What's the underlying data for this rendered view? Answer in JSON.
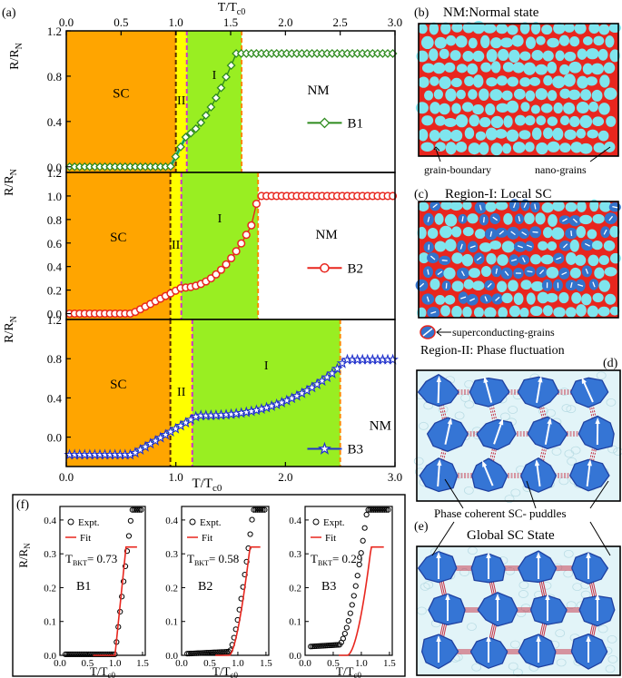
{
  "figure": {
    "panel_labels": {
      "a": "(a)",
      "b": "(b)",
      "c": "(c)",
      "d": "(d)",
      "e": "(e)",
      "f": "(f)"
    },
    "titles": {
      "b": "NM:Normal state",
      "c": "Region-I: Local SC",
      "d": "Region-II: Phase fluctuation",
      "e": "Global SC State"
    },
    "annotations": {
      "grain_boundary": "grain-boundary",
      "nano_grains": "nano-grains",
      "sc_grains": "superconducting-grains",
      "puddles": "Phase coherent SC- puddles"
    },
    "colors": {
      "sc": "#FFA500",
      "ii": "#FFFF00",
      "i": "#99EE22",
      "grain": "#7FE5EE",
      "boundary": "#E8261E",
      "scgrain": "#3373CC",
      "link": "#C83246"
    }
  },
  "chart_data": [
    {
      "type": "line",
      "panel": "a-top",
      "series": [
        {
          "name": "B1",
          "color": "#2E8B1E",
          "marker": "diamond"
        }
      ],
      "ylabel": "R/R_N",
      "xlabel_top": "T/T_c0",
      "xlim": [
        0,
        3.0
      ],
      "ylim": [
        -0.05,
        1.2
      ],
      "xticks": [
        "0.0",
        "0.5",
        "1.0",
        "1.5",
        "2.0",
        "2.5",
        "3.0"
      ],
      "yticks": [
        "0.0",
        "0.4",
        "0.8",
        "1.2"
      ],
      "regions": {
        "SC": "SC",
        "II": "II",
        "I": "I",
        "NM": "NM"
      },
      "bounds": [
        1.0,
        1.1,
        1.6
      ]
    },
    {
      "type": "line",
      "panel": "a-mid",
      "series": [
        {
          "name": "B2",
          "color": "#E8261E",
          "marker": "circle"
        }
      ],
      "ylabel": "R/R_N",
      "xlim": [
        0,
        3.0
      ],
      "ylim": [
        -0.05,
        1.2
      ],
      "yticks": [
        "0.0",
        "0.2",
        "0.4",
        "0.6",
        "0.8",
        "1.0",
        "1.2"
      ],
      "regions": {
        "SC": "SC",
        "II": "II",
        "I": "I",
        "NM": "NM"
      },
      "bounds": [
        0.95,
        1.05,
        1.75
      ]
    },
    {
      "type": "line",
      "panel": "a-bottom",
      "series": [
        {
          "name": "B3",
          "color": "#2233CC",
          "marker": "star"
        }
      ],
      "ylabel": "R/R_N",
      "xlabel": "T/T_c0",
      "xlim": [
        0,
        3.0
      ],
      "ylim": [
        -0.3,
        1.2
      ],
      "xticks": [
        "0.0",
        "1.0",
        "2.0",
        "3.0"
      ],
      "yticks": [
        "0.0",
        "0.4",
        "0.8",
        "1.2"
      ],
      "regions": {
        "SC": "SC",
        "II": "II",
        "I": "I",
        "NM": "NM"
      },
      "bounds": [
        0.95,
        1.15,
        2.5
      ]
    },
    {
      "type": "scatter",
      "panel": "f",
      "ylabel": "R/R_N",
      "xlabel": "T/T_c0",
      "legend": {
        "expt": "Expt.",
        "fit": "Fit"
      },
      "subplots": [
        {
          "name": "B1",
          "tbkt": "T_BKT= 0.73",
          "xticks": [
            "0.0",
            "0.5",
            "1.0",
            "1.5"
          ],
          "yticks": [
            "0.0",
            "0.1",
            "0.2",
            "0.3",
            "0.4"
          ]
        },
        {
          "name": "B2",
          "tbkt": "T_BKT= 0.58",
          "xticks": [
            "0.0",
            "0.5",
            "1.0",
            "1.5"
          ],
          "yticks": [
            "0.0",
            "0.1",
            "0.2",
            "0.3",
            "0.4"
          ]
        },
        {
          "name": "B3",
          "tbkt": "T_BKT= 0.29",
          "xticks": [
            "0.0",
            "0.5",
            "1.0",
            "1.5"
          ],
          "yticks": [
            "0.0",
            "0.1",
            "0.2",
            "0.3",
            "0.4"
          ]
        }
      ]
    }
  ]
}
